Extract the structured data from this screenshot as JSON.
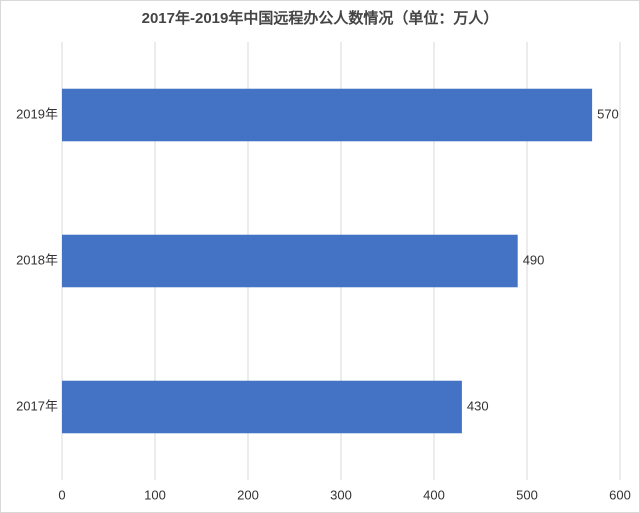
{
  "chart_data": {
    "type": "hbar",
    "title": "2017年-2019年中国远程办公人数情况（单位：万人）",
    "categories": [
      "2019年",
      "2018年",
      "2017年"
    ],
    "values": [
      570,
      490,
      430
    ],
    "color": "#4472c4",
    "xlim": [
      0,
      600
    ],
    "xticks": [
      0,
      100,
      200,
      300,
      400,
      500,
      600
    ],
    "grid": true
  }
}
